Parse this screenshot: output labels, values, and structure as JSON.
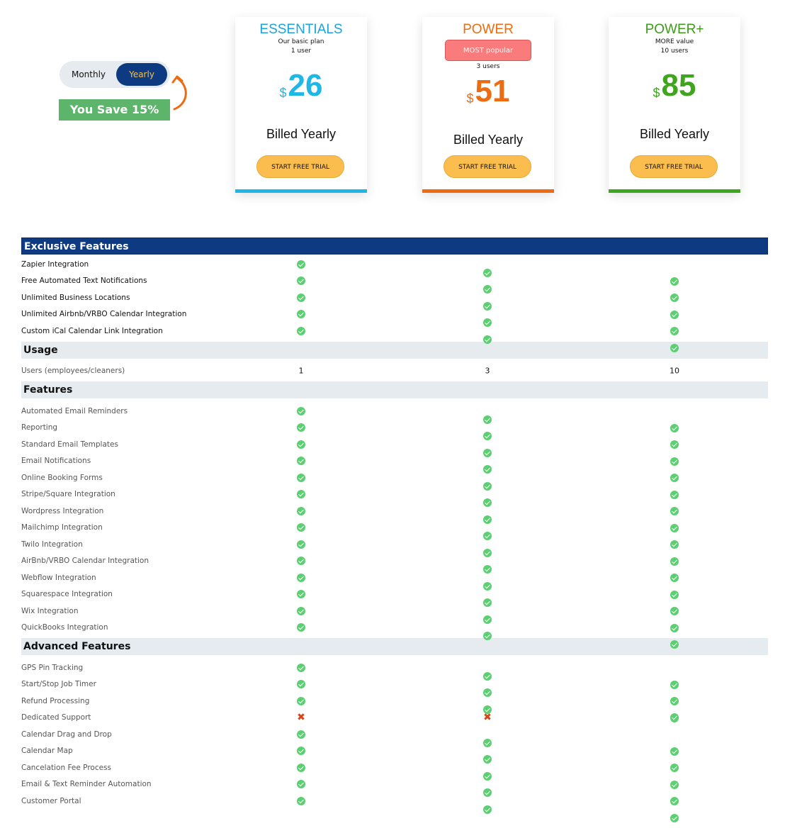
{
  "toggle": {
    "monthly": "Monthly",
    "yearly": "Yearly",
    "selected": "Yearly"
  },
  "save_badge": "You Save 15%",
  "colors": {
    "navy": "#0d3a80",
    "blue": "#1fb8e6",
    "orange": "#ee6c11",
    "green": "#3fa51c",
    "cta": "#fcbd4f",
    "popular": "#f97b7b"
  },
  "plans": [
    {
      "name": "ESSENTIALS",
      "subtitle": "Our basic plan",
      "users": "1 user",
      "currency": "$",
      "price": "26",
      "billing": "Billed Yearly",
      "cta": "START FREE TRIAL"
    },
    {
      "name": "POWER",
      "badge": "MOST popular",
      "users": "3 users",
      "currency": "$",
      "price": "51",
      "billing": "Billed Yearly",
      "cta": "START FREE TRIAL"
    },
    {
      "name": "POWER+",
      "subtitle": "MORE value",
      "users": "10 users",
      "currency": "$",
      "price": "85",
      "billing": "Billed Yearly",
      "cta": "START FREE TRIAL"
    }
  ],
  "sections": [
    {
      "title": "Exclusive Features",
      "style": "dark",
      "rows": [
        {
          "label": "Zapier Integration",
          "values": [
            "check",
            "check",
            "check"
          ]
        },
        {
          "label": "Free Automated Text Notifications",
          "values": [
            "check",
            "check",
            "check"
          ]
        },
        {
          "label": "Unlimited Business Locations",
          "values": [
            "check",
            "check",
            "check"
          ]
        },
        {
          "label": "Unlimited Airbnb/VRBO Calendar Integration",
          "values": [
            "check",
            "check",
            "check"
          ]
        },
        {
          "label": "Custom iCal Calendar Link Integration",
          "values": [
            "check",
            "check",
            "check"
          ]
        }
      ]
    },
    {
      "title": "Usage",
      "style": "light",
      "rows": [
        {
          "label": "Users (employees/cleaners)",
          "values": [
            "1",
            "3",
            "10"
          ]
        }
      ]
    },
    {
      "title": "Features",
      "style": "light",
      "rows": [
        {
          "label": "Automated Email Reminders",
          "values": [
            "check",
            "check",
            "check"
          ]
        },
        {
          "label": "Reporting",
          "values": [
            "check",
            "check",
            "check"
          ]
        },
        {
          "label": "Standard Email Templates",
          "values": [
            "check",
            "check",
            "check"
          ]
        },
        {
          "label": "Email Notifications",
          "values": [
            "check",
            "check",
            "check"
          ]
        },
        {
          "label": "Online Booking Forms",
          "values": [
            "check",
            "check",
            "check"
          ]
        },
        {
          "label": "Stripe/Square Integration",
          "values": [
            "check",
            "check",
            "check"
          ]
        },
        {
          "label": "Wordpress Integration",
          "values": [
            "check",
            "check",
            "check"
          ]
        },
        {
          "label": "Mailchimp Integration",
          "values": [
            "check",
            "check",
            "check"
          ]
        },
        {
          "label": "Twilo Integration",
          "values": [
            "check",
            "check",
            "check"
          ]
        },
        {
          "label": "AirBnb/VRBO Calendar Integration",
          "values": [
            "check",
            "check",
            "check"
          ]
        },
        {
          "label": "Webflow Integration",
          "values": [
            "check",
            "check",
            "check"
          ]
        },
        {
          "label": "Squarespace Integration",
          "values": [
            "check",
            "check",
            "check"
          ]
        },
        {
          "label": "Wix Integration",
          "values": [
            "check",
            "check",
            "check"
          ]
        },
        {
          "label": "QuickBooks Integration",
          "values": [
            "check",
            "check",
            "check"
          ]
        }
      ]
    },
    {
      "title": "Advanced Features",
      "style": "light",
      "rows": [
        {
          "label": "GPS Pin Tracking",
          "values": [
            "check",
            "check",
            "check"
          ]
        },
        {
          "label": "Start/Stop Job Timer",
          "values": [
            "check",
            "check",
            "check"
          ]
        },
        {
          "label": "Refund Processing",
          "values": [
            "check",
            "check",
            "check"
          ]
        },
        {
          "label": "Dedicated Support",
          "values": [
            "cross",
            "cross",
            "check"
          ]
        },
        {
          "label": "Calendar Drag and Drop",
          "values": [
            "check",
            "check",
            "check"
          ]
        },
        {
          "label": "Calendar Map",
          "values": [
            "check",
            "check",
            "check"
          ]
        },
        {
          "label": "Cancelation Fee Process",
          "values": [
            "check",
            "check",
            "check"
          ]
        },
        {
          "label": "Email & Text Reminder Automation",
          "values": [
            "check",
            "check",
            "check"
          ]
        },
        {
          "label": "Customer Portal",
          "values": [
            "check",
            "check",
            "check"
          ]
        }
      ]
    }
  ]
}
